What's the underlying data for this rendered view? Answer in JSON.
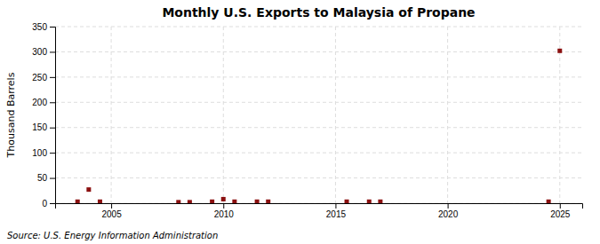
{
  "chart_data": {
    "type": "scatter",
    "title": "Monthly U.S. Exports to Malaysia of Propane",
    "ylabel": "Thousand Barrels",
    "source": "Source: U.S. Energy Information Administration",
    "x": [
      2003.5,
      2004.0,
      2004.5,
      2008.0,
      2008.5,
      2009.5,
      2010.0,
      2010.5,
      2011.5,
      2012.0,
      2015.5,
      2016.5,
      2017.0,
      2024.5,
      2025.0
    ],
    "values": [
      3,
      27,
      3,
      2,
      2,
      3,
      8,
      3,
      3,
      3,
      3,
      3,
      3,
      3,
      302
    ],
    "color": "#8b1010",
    "marker": "square",
    "xlim": [
      2002.5,
      2026
    ],
    "xticks": [
      2005,
      2010,
      2015,
      2020,
      2025
    ],
    "ylim": [
      0,
      350
    ],
    "yticks": [
      0,
      50,
      100,
      150,
      200,
      250,
      300,
      350
    ],
    "grid": true
  }
}
